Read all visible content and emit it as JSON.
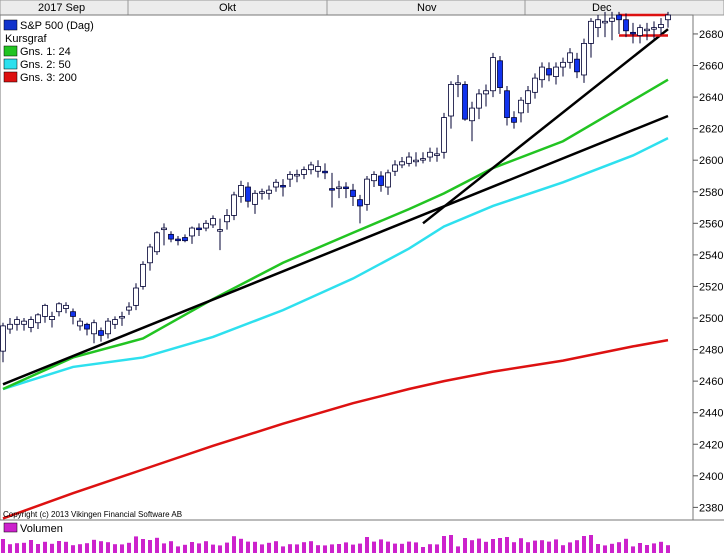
{
  "chart_data": {
    "type": "line",
    "months": [
      "2017 Sep",
      "Okt",
      "Nov",
      "Dec"
    ],
    "y_ticks": [
      2380,
      2400,
      2420,
      2440,
      2460,
      2480,
      2500,
      2520,
      2540,
      2560,
      2580,
      2600,
      2620,
      2640,
      2660,
      2680
    ],
    "ylim": [
      2372,
      2692
    ],
    "legend": {
      "title": "S&P 500 (Dag)",
      "subtitle": "Kursgraf",
      "items": [
        {
          "label": "Gns. 1: 24",
          "color": "#22c422"
        },
        {
          "label": "Gns. 2: 50",
          "color": "#2ee0ee"
        },
        {
          "label": "Gns. 3: 200",
          "color": "#dd1111"
        }
      ],
      "placement": "top-left"
    },
    "candles": {
      "open": [
        2479,
        2493,
        2496,
        2496,
        2494,
        2497,
        2501,
        2499,
        2504,
        2506,
        2504,
        2495,
        2496,
        2490,
        2492,
        2490,
        2496,
        2500,
        2505,
        2508,
        2520,
        2535,
        2542,
        2556,
        2553,
        2550,
        2551,
        2552,
        2557,
        2557,
        2559,
        2555,
        2561,
        2565,
        2577,
        2583,
        2572,
        2579,
        2579,
        2583,
        2584,
        2588,
        2590,
        2591,
        2594,
        2593,
        2593,
        2582,
        2583,
        2583,
        2581,
        2575,
        2572,
        2587,
        2590,
        2583,
        2593,
        2597,
        2598,
        2599,
        2601,
        2602,
        2603,
        2605,
        2628,
        2648,
        2648,
        2625,
        2633,
        2642,
        2644,
        2663,
        2644,
        2627,
        2630,
        2636,
        2643,
        2651,
        2658,
        2653,
        2659,
        2662,
        2664,
        2654,
        2674,
        2684,
        2687,
        2688,
        2692,
        2689,
        2681,
        2679,
        2683,
        2683,
        2684,
        2689
      ],
      "close": [
        2495,
        2496,
        2499,
        2498,
        2499,
        2502,
        2508,
        2501,
        2509,
        2508,
        2501,
        2498,
        2493,
        2497,
        2489,
        2498,
        2499,
        2501,
        2507,
        2519,
        2534,
        2545,
        2554,
        2557,
        2550,
        2549,
        2549,
        2557,
        2556,
        2560,
        2563,
        2556,
        2565,
        2578,
        2584,
        2574,
        2579,
        2580,
        2581,
        2586,
        2583,
        2591,
        2591,
        2594,
        2597,
        2596,
        2592,
        2581,
        2583,
        2582,
        2577,
        2571,
        2588,
        2591,
        2584,
        2592,
        2597,
        2599,
        2602,
        2600,
        2601,
        2605,
        2604,
        2627,
        2648,
        2649,
        2626,
        2633,
        2642,
        2644,
        2665,
        2646,
        2627,
        2624,
        2638,
        2644,
        2652,
        2659,
        2654,
        2659,
        2662,
        2668,
        2656,
        2674,
        2688,
        2689,
        2688,
        2690,
        2689,
        2682,
        2680,
        2684,
        2683,
        2684,
        2686,
        2692
      ],
      "high": [
        2497,
        2500,
        2501,
        2500,
        2501,
        2503,
        2509,
        2504,
        2510,
        2510,
        2506,
        2500,
        2497,
        2499,
        2494,
        2500,
        2501,
        2504,
        2510,
        2522,
        2536,
        2547,
        2555,
        2560,
        2555,
        2552,
        2553,
        2558,
        2560,
        2562,
        2565,
        2563,
        2569,
        2580,
        2587,
        2586,
        2581,
        2582,
        2584,
        2588,
        2588,
        2593,
        2594,
        2596,
        2599,
        2600,
        2598,
        2592,
        2587,
        2586,
        2585,
        2578,
        2590,
        2593,
        2593,
        2594,
        2600,
        2602,
        2605,
        2605,
        2605,
        2608,
        2608,
        2630,
        2650,
        2654,
        2650,
        2637,
        2645,
        2648,
        2668,
        2666,
        2647,
        2631,
        2640,
        2647,
        2655,
        2662,
        2662,
        2662,
        2665,
        2671,
        2668,
        2677,
        2690,
        2692,
        2694,
        2694,
        2694,
        2693,
        2687,
        2686,
        2687,
        2688,
        2690,
        2694
      ],
      "low": [
        2472,
        2490,
        2492,
        2492,
        2491,
        2493,
        2497,
        2494,
        2501,
        2503,
        2496,
        2492,
        2489,
        2484,
        2485,
        2487,
        2493,
        2495,
        2502,
        2505,
        2518,
        2530,
        2540,
        2546,
        2548,
        2546,
        2548,
        2547,
        2552,
        2555,
        2557,
        2543,
        2556,
        2562,
        2573,
        2570,
        2566,
        2575,
        2575,
        2580,
        2577,
        2583,
        2586,
        2588,
        2591,
        2589,
        2588,
        2570,
        2576,
        2576,
        2571,
        2560,
        2568,
        2583,
        2580,
        2578,
        2590,
        2595,
        2596,
        2596,
        2598,
        2599,
        2599,
        2601,
        2620,
        2640,
        2625,
        2612,
        2626,
        2634,
        2640,
        2642,
        2622,
        2620,
        2624,
        2630,
        2639,
        2646,
        2650,
        2648,
        2653,
        2658,
        2652,
        2649,
        2665,
        2678,
        2678,
        2676,
        2680,
        2678,
        2674,
        2674,
        2676,
        2677,
        2679,
        2684
      ]
    },
    "moving_averages": {
      "x": [
        0,
        10,
        20,
        30,
        40,
        50,
        58,
        63,
        70,
        80,
        90,
        95
      ],
      "ma24": [
        2455,
        2475,
        2487,
        2512,
        2535,
        2554,
        2569,
        2579,
        2595,
        2612,
        2638,
        2651
      ],
      "ma50": [
        2455,
        2469,
        2475,
        2488,
        2505,
        2525,
        2544,
        2558,
        2571,
        2586,
        2603,
        2614
      ],
      "ma200": [
        2373,
        2389,
        2404,
        2419,
        2433,
        2446,
        2455,
        2460,
        2466,
        2473,
        2482,
        2486
      ]
    },
    "trendlines": [
      {
        "x": [
          0,
          95
        ],
        "y": [
          2458,
          2628
        ],
        "color": "#000000"
      },
      {
        "x": [
          60,
          95
        ],
        "y": [
          2560,
          2683
        ],
        "color": "#000000"
      },
      {
        "x": [
          88,
          95
        ],
        "y": [
          2692,
          2692
        ],
        "color": "#dd1111"
      },
      {
        "x": [
          88,
          95
        ],
        "y": [
          2679,
          2679
        ],
        "color": "#dd1111"
      }
    ],
    "volume_legend": "Volumen",
    "copyright": "Copyright (c) 2013 Vikingen Financial Software AB"
  }
}
